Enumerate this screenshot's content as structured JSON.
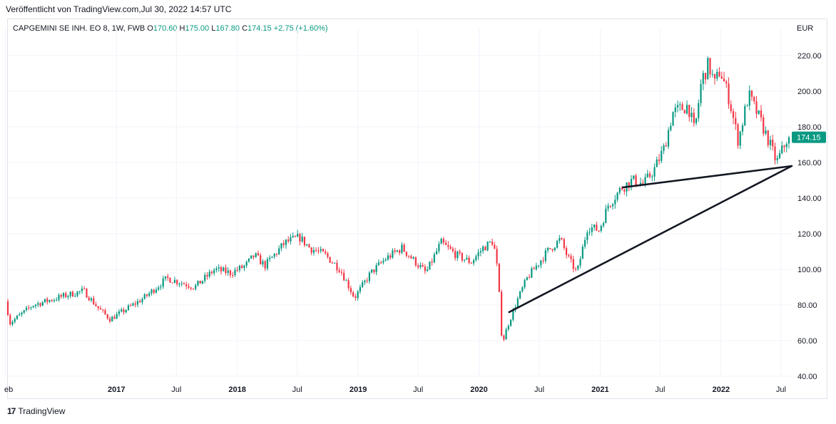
{
  "header": {
    "published": "Veröffentlicht von TradingView.com,Jul 30, 2022 14:57 UTC"
  },
  "legend": {
    "symbol": "CAPGEMINI SE INH. EO 8, 1W, FWB",
    "o_label": "O",
    "o_value": "170.60",
    "h_label": "H",
    "h_value": "175.00",
    "l_label": "L",
    "l_value": "167.80",
    "c_label": "C",
    "c_value": "174.15",
    "change": "+2.75 (+1.60%)"
  },
  "currency": "EUR",
  "footer": {
    "logo": "17",
    "brand": "TradingView"
  },
  "colors": {
    "up": "#089981",
    "down": "#f23645",
    "trendline": "#131722",
    "grid": "#f0f3fa"
  },
  "chart_data": {
    "type": "candlestick",
    "instrument": "CAPGEMINI SE INH. EO 8",
    "interval": "1W",
    "exchange": "FWB",
    "currency": "EUR",
    "ylim": [
      40,
      225
    ],
    "y_ticks": [
      "40.00",
      "60.00",
      "80.00",
      "100.00",
      "120.00",
      "140.00",
      "160.00",
      "180.00",
      "200.00",
      "220.00"
    ],
    "x_range": [
      "2016-02-08",
      "2022-08-15"
    ],
    "x_ticks": [
      {
        "label": "eb",
        "date": "2016-02-01",
        "year": false
      },
      {
        "label": "2017",
        "date": "2017-01-01",
        "year": true
      },
      {
        "label": "Jul",
        "date": "2017-07-01",
        "year": false
      },
      {
        "label": "2018",
        "date": "2018-01-01",
        "year": true
      },
      {
        "label": "Jul",
        "date": "2018-07-01",
        "year": false
      },
      {
        "label": "2019",
        "date": "2019-01-01",
        "year": true
      },
      {
        "label": "Jul",
        "date": "2019-07-01",
        "year": false
      },
      {
        "label": "2020",
        "date": "2020-01-01",
        "year": true
      },
      {
        "label": "Jul",
        "date": "2020-07-01",
        "year": false
      },
      {
        "label": "2021",
        "date": "2021-01-01",
        "year": true
      },
      {
        "label": "Jul",
        "date": "2021-07-01",
        "year": false
      },
      {
        "label": "2022",
        "date": "2022-01-01",
        "year": true
      },
      {
        "label": "Jul",
        "date": "2022-07-01",
        "year": false
      }
    ],
    "anchors": [
      [
        "2016-02-08",
        82
      ],
      [
        "2016-02-22",
        70
      ],
      [
        "2016-05-01",
        80
      ],
      [
        "2016-08-01",
        85
      ],
      [
        "2016-10-01",
        88
      ],
      [
        "2016-11-15",
        78
      ],
      [
        "2016-12-20",
        72
      ],
      [
        "2017-02-01",
        77
      ],
      [
        "2017-04-01",
        84
      ],
      [
        "2017-06-10",
        95
      ],
      [
        "2017-08-01",
        92
      ],
      [
        "2017-09-01",
        90
      ],
      [
        "2017-11-01",
        100
      ],
      [
        "2017-12-20",
        98
      ],
      [
        "2018-02-01",
        102
      ],
      [
        "2018-03-01",
        108
      ],
      [
        "2018-04-01",
        102
      ],
      [
        "2018-06-01",
        115
      ],
      [
        "2018-07-15",
        118
      ],
      [
        "2018-08-15",
        112
      ],
      [
        "2018-10-01",
        108
      ],
      [
        "2018-11-15",
        100
      ],
      [
        "2018-12-28",
        84
      ],
      [
        "2019-02-15",
        98
      ],
      [
        "2019-04-01",
        106
      ],
      [
        "2019-05-20",
        112
      ],
      [
        "2019-06-15",
        107
      ],
      [
        "2019-08-01",
        98
      ],
      [
        "2019-09-15",
        115
      ],
      [
        "2019-11-01",
        108
      ],
      [
        "2019-12-15",
        104
      ],
      [
        "2020-01-20",
        112
      ],
      [
        "2020-02-20",
        116
      ],
      [
        "2020-03-05",
        98
      ],
      [
        "2020-03-18",
        58
      ],
      [
        "2020-04-01",
        67
      ],
      [
        "2020-05-01",
        82
      ],
      [
        "2020-06-01",
        95
      ],
      [
        "2020-08-01",
        110
      ],
      [
        "2020-09-10",
        117
      ],
      [
        "2020-10-01",
        107
      ],
      [
        "2020-10-30",
        98
      ],
      [
        "2020-12-01",
        124
      ],
      [
        "2021-01-05",
        122
      ],
      [
        "2021-02-01",
        136
      ],
      [
        "2021-03-15",
        146
      ],
      [
        "2021-04-15",
        150
      ],
      [
        "2021-05-20",
        148
      ],
      [
        "2021-06-20",
        156
      ],
      [
        "2021-07-20",
        168
      ],
      [
        "2021-08-15",
        188
      ],
      [
        "2021-10-01",
        192
      ],
      [
        "2021-10-20",
        177
      ],
      [
        "2021-11-10",
        206
      ],
      [
        "2021-12-01",
        215
      ],
      [
        "2021-12-20",
        204
      ],
      [
        "2022-01-05",
        212
      ],
      [
        "2022-02-01",
        196
      ],
      [
        "2022-03-01",
        172
      ],
      [
        "2022-04-01",
        198
      ],
      [
        "2022-05-01",
        186
      ],
      [
        "2022-06-01",
        172
      ],
      [
        "2022-06-25",
        160
      ],
      [
        "2022-07-29",
        174.15
      ]
    ],
    "last_candle": {
      "date": "2022-07-25",
      "open": 170.6,
      "high": 175.0,
      "low": 167.8,
      "close": 174.15
    },
    "last_price_label": "174.15",
    "trendlines": [
      {
        "from": [
          "2020-04-01",
          76
        ],
        "to": [
          "2022-07-29",
          158
        ]
      },
      {
        "from": [
          "2021-03-10",
          146
        ],
        "to": [
          "2022-07-29",
          158
        ]
      }
    ]
  }
}
